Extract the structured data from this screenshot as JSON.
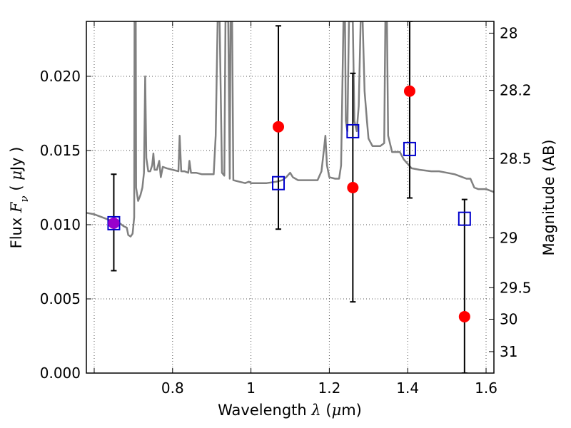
{
  "chart_data": {
    "type": "scatter",
    "x_range": [
      0.58,
      1.62
    ],
    "y_range": [
      0.0,
      0.0237
    ],
    "grid": true,
    "grid_style": "dotted",
    "x_ticks": [
      {
        "value": 0.6,
        "label": ""
      },
      {
        "value": 0.8,
        "label": "0.8"
      },
      {
        "value": 1.0,
        "label": "1"
      },
      {
        "value": 1.2,
        "label": "1.2"
      },
      {
        "value": 1.4,
        "label": "1.4"
      },
      {
        "value": 1.6,
        "label": "1.6"
      }
    ],
    "y_ticks": [
      {
        "value": 0.0,
        "label": "0.000"
      },
      {
        "value": 0.005,
        "label": "0.005"
      },
      {
        "value": 0.01,
        "label": "0.010"
      },
      {
        "value": 0.015,
        "label": "0.015"
      },
      {
        "value": 0.02,
        "label": "0.020"
      }
    ],
    "x_label": {
      "prefix": "Wavelength  ",
      "var": "λ",
      "suffix": " (",
      "unit_var": "μ",
      "unit_rest": "m)"
    },
    "y_label": {
      "prefix": "Flux  ",
      "var": "F",
      "sub": "ν",
      "mid": "  ( ",
      "unit_var": "μ",
      "unit_rest": "Jy )"
    },
    "right_axis": {
      "label": "Magnitude (AB)",
      "ticks": [
        {
          "value": 28,
          "label": "28"
        },
        {
          "value": 28.2,
          "label": "28.2"
        },
        {
          "value": 28.5,
          "label": "28.5"
        },
        {
          "value": 29,
          "label": "29"
        },
        {
          "value": 29.5,
          "label": "29.5"
        },
        {
          "value": 30,
          "label": "30"
        },
        {
          "value": 31,
          "label": "31"
        }
      ]
    },
    "colors": {
      "template": "#808080",
      "photometry": "#ff0000",
      "model": "#0000cc",
      "errorbar": "#000000",
      "grid": "#555555"
    },
    "series": [
      {
        "kind": "template_spectrum",
        "points": [
          [
            0.58,
            0.0108
          ],
          [
            0.6,
            0.0107
          ],
          [
            0.62,
            0.0105
          ],
          [
            0.64,
            0.0103
          ],
          [
            0.655,
            0.0102
          ],
          [
            0.665,
            0.0101
          ],
          [
            0.675,
            0.0099
          ],
          [
            0.683,
            0.0098
          ],
          [
            0.687,
            0.0093
          ],
          [
            0.693,
            0.0092
          ],
          [
            0.698,
            0.0094
          ],
          [
            0.702,
            0.0105
          ],
          [
            0.703,
            0.0237
          ],
          [
            0.706,
            0.0237
          ],
          [
            0.707,
            0.0125
          ],
          [
            0.712,
            0.0116
          ],
          [
            0.718,
            0.012
          ],
          [
            0.723,
            0.0125
          ],
          [
            0.727,
            0.0135
          ],
          [
            0.73,
            0.02
          ],
          [
            0.733,
            0.0145
          ],
          [
            0.738,
            0.0136
          ],
          [
            0.743,
            0.0136
          ],
          [
            0.748,
            0.014
          ],
          [
            0.751,
            0.0148
          ],
          [
            0.754,
            0.0137
          ],
          [
            0.76,
            0.0137
          ],
          [
            0.766,
            0.0143
          ],
          [
            0.77,
            0.0132
          ],
          [
            0.775,
            0.0139
          ],
          [
            0.785,
            0.0138
          ],
          [
            0.8,
            0.0137
          ],
          [
            0.815,
            0.0136
          ],
          [
            0.818,
            0.016
          ],
          [
            0.822,
            0.0136
          ],
          [
            0.83,
            0.0136
          ],
          [
            0.84,
            0.0135
          ],
          [
            0.843,
            0.0143
          ],
          [
            0.847,
            0.0135
          ],
          [
            0.86,
            0.0135
          ],
          [
            0.875,
            0.0134
          ],
          [
            0.89,
            0.0134
          ],
          [
            0.905,
            0.0134
          ],
          [
            0.91,
            0.016
          ],
          [
            0.915,
            0.0237
          ],
          [
            0.92,
            0.0237
          ],
          [
            0.926,
            0.0135
          ],
          [
            0.932,
            0.0133
          ],
          [
            0.935,
            0.0237
          ],
          [
            0.942,
            0.0237
          ],
          [
            0.946,
            0.0131
          ],
          [
            0.948,
            0.0237
          ],
          [
            0.952,
            0.0237
          ],
          [
            0.955,
            0.013
          ],
          [
            0.97,
            0.0129
          ],
          [
            0.985,
            0.0128
          ],
          [
            0.995,
            0.0129
          ],
          [
            1.0,
            0.0128
          ],
          [
            1.02,
            0.0128
          ],
          [
            1.04,
            0.0128
          ],
          [
            1.065,
            0.0129
          ],
          [
            1.08,
            0.013
          ],
          [
            1.09,
            0.0132
          ],
          [
            1.1,
            0.0135
          ],
          [
            1.107,
            0.0132
          ],
          [
            1.12,
            0.013
          ],
          [
            1.15,
            0.013
          ],
          [
            1.17,
            0.013
          ],
          [
            1.18,
            0.0136
          ],
          [
            1.186,
            0.015
          ],
          [
            1.19,
            0.016
          ],
          [
            1.194,
            0.014
          ],
          [
            1.2,
            0.0132
          ],
          [
            1.215,
            0.0131
          ],
          [
            1.225,
            0.0131
          ],
          [
            1.23,
            0.014
          ],
          [
            1.236,
            0.0237
          ],
          [
            1.24,
            0.0237
          ],
          [
            1.242,
            0.017
          ],
          [
            1.246,
            0.0163
          ],
          [
            1.25,
            0.0237
          ],
          [
            1.26,
            0.0237
          ],
          [
            1.264,
            0.017
          ],
          [
            1.27,
            0.0163
          ],
          [
            1.275,
            0.018
          ],
          [
            1.28,
            0.0237
          ],
          [
            1.285,
            0.0237
          ],
          [
            1.29,
            0.019
          ],
          [
            1.296,
            0.017
          ],
          [
            1.3,
            0.0158
          ],
          [
            1.31,
            0.0153
          ],
          [
            1.33,
            0.0153
          ],
          [
            1.34,
            0.0155
          ],
          [
            1.343,
            0.0237
          ],
          [
            1.347,
            0.0237
          ],
          [
            1.35,
            0.016
          ],
          [
            1.36,
            0.0149
          ],
          [
            1.38,
            0.0149
          ],
          [
            1.39,
            0.0144
          ],
          [
            1.41,
            0.0138
          ],
          [
            1.43,
            0.0137
          ],
          [
            1.46,
            0.0136
          ],
          [
            1.48,
            0.0136
          ],
          [
            1.5,
            0.0135
          ],
          [
            1.52,
            0.0134
          ],
          [
            1.54,
            0.0132
          ],
          [
            1.55,
            0.0131
          ],
          [
            1.56,
            0.0131
          ],
          [
            1.57,
            0.0125
          ],
          [
            1.58,
            0.0124
          ],
          [
            1.6,
            0.0124
          ],
          [
            1.62,
            0.0122
          ]
        ]
      },
      {
        "kind": "model_squares",
        "points": [
          {
            "x": 0.65,
            "y": 0.0101
          },
          {
            "x": 1.07,
            "y": 0.0128
          },
          {
            "x": 1.26,
            "y": 0.0163
          },
          {
            "x": 1.405,
            "y": 0.0151
          },
          {
            "x": 1.545,
            "y": 0.0104
          }
        ]
      },
      {
        "kind": "observed_points",
        "points": [
          {
            "x": 0.65,
            "y": 0.0101,
            "yerr_low": 0.0069,
            "yerr_high": 0.0134,
            "color": "#9900cc"
          },
          {
            "x": 1.07,
            "y": 0.0166,
            "yerr_low": 0.0097,
            "yerr_high": 0.0234,
            "color": "#ff0000"
          },
          {
            "x": 1.26,
            "y": 0.0125,
            "yerr_low": 0.0048,
            "yerr_high": 0.0202,
            "color": "#ff0000"
          },
          {
            "x": 1.405,
            "y": 0.019,
            "yerr_low": 0.0118,
            "yerr_high": 0.0237,
            "color": "#ff0000"
          },
          {
            "x": 1.545,
            "y": 0.0038,
            "yerr_low": 0.0,
            "yerr_high": 0.0117,
            "color": "#ff0000"
          }
        ]
      }
    ]
  }
}
